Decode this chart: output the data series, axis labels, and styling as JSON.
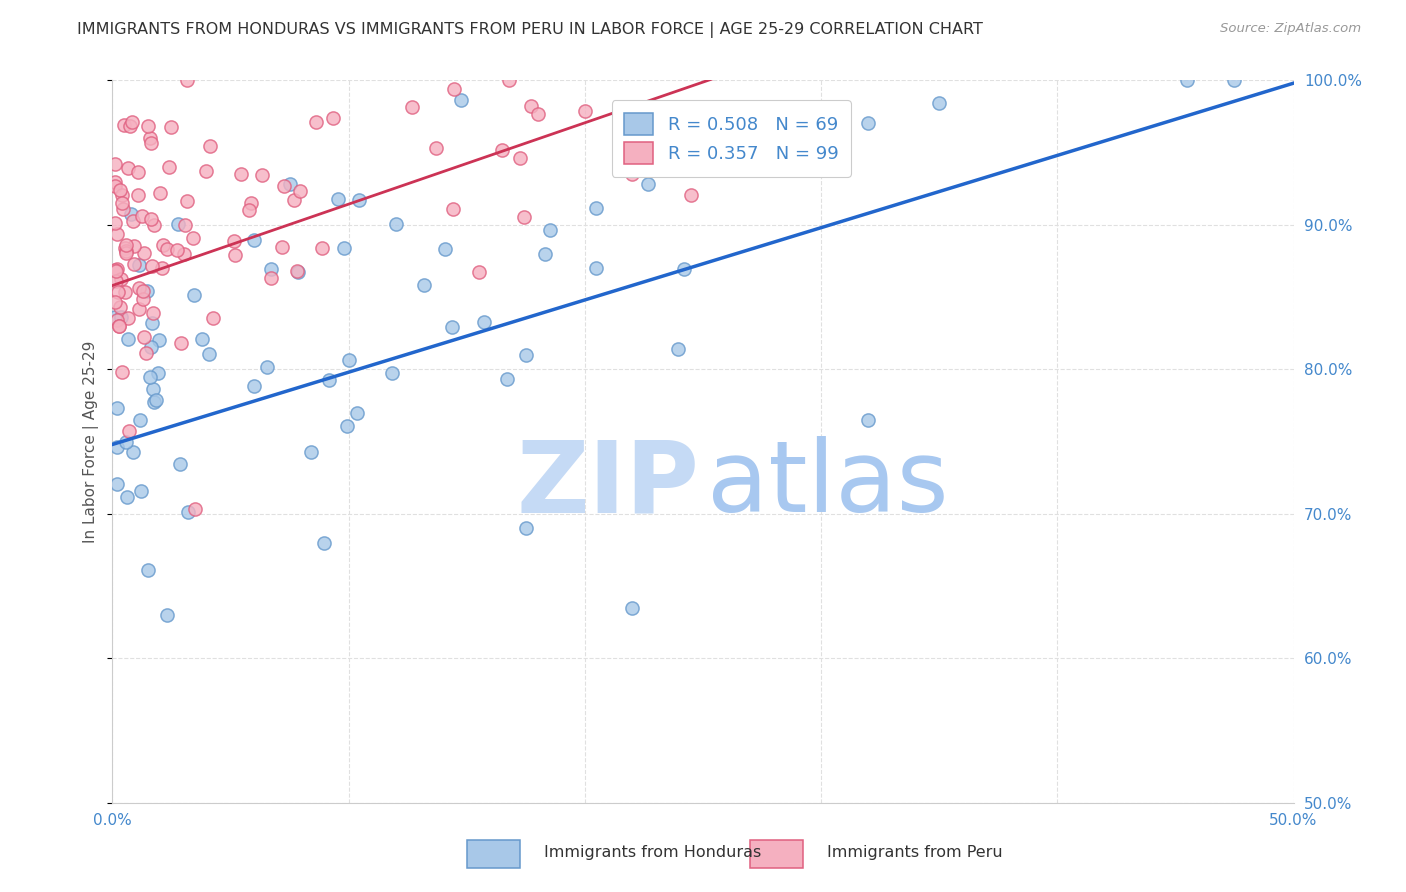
{
  "title": "IMMIGRANTS FROM HONDURAS VS IMMIGRANTS FROM PERU IN LABOR FORCE | AGE 25-29 CORRELATION CHART",
  "source": "Source: ZipAtlas.com",
  "ylabel": "In Labor Force | Age 25-29",
  "xlim": [
    0.0,
    0.5
  ],
  "ylim": [
    0.5,
    1.0
  ],
  "xtick_vals": [
    0.0,
    0.1,
    0.2,
    0.3,
    0.4,
    0.5
  ],
  "ytick_vals": [
    0.5,
    0.6,
    0.7,
    0.8,
    0.9,
    1.0
  ],
  "xtick_labels_bottom": [
    "0.0%",
    "",
    "",
    "",
    "",
    "50.0%"
  ],
  "ytick_labels_right": [
    "50.0%",
    "60.0%",
    "70.0%",
    "80.0%",
    "90.0%",
    "100.0%"
  ],
  "honduras_facecolor": "#a8c8e8",
  "honduras_edgecolor": "#6699cc",
  "peru_facecolor": "#f5b0c0",
  "peru_edgecolor": "#e06080",
  "trend_blue_color": "#2266cc",
  "trend_pink_color": "#cc3355",
  "R_honduras": "0.508",
  "N_honduras": "69",
  "R_peru": "0.357",
  "N_peru": "99",
  "watermark_zip_color": "#c5daf5",
  "watermark_atlas_color": "#a8c8f0",
  "legend_label_honduras": "Immigrants from Honduras",
  "legend_label_peru": "Immigrants from Peru",
  "axis_label_color": "#4488cc",
  "grid_color": "#e0e0e0",
  "title_color": "#333333",
  "source_color": "#999999",
  "ylabel_color": "#555555",
  "blue_line": {
    "x0": 0.0,
    "x1": 0.5,
    "y0": 0.748,
    "y1": 0.998
  },
  "pink_line": {
    "x0": 0.0,
    "x1": 0.27,
    "y0": 0.858,
    "y1": 1.01
  }
}
